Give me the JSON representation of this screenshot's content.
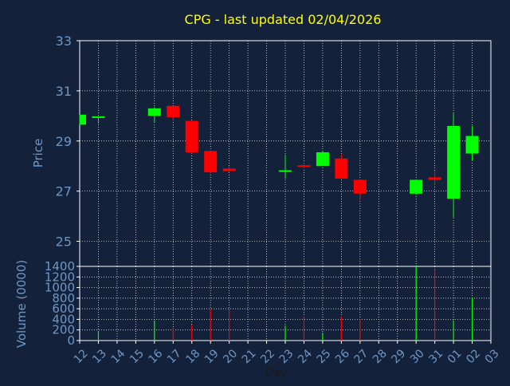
{
  "chart_data": {
    "type": "candlestick",
    "title": "CPG - last updated 02/04/2026",
    "xlabel": "Day",
    "price_panel": {
      "ylabel": "Price",
      "ylim": [
        24,
        33
      ],
      "yticks": [
        25,
        27,
        29,
        31,
        33
      ],
      "grid": true
    },
    "volume_panel": {
      "ylabel": "Volume (0000)",
      "ylim": [
        0,
        1400
      ],
      "yticks": [
        0,
        200,
        400,
        600,
        800,
        1000,
        1200,
        1400
      ],
      "grid": true
    },
    "x_tick_labels": [
      "12",
      "13",
      "14",
      "15",
      "16",
      "17",
      "18",
      "19",
      "20",
      "21",
      "22",
      "23",
      "24",
      "25",
      "26",
      "27",
      "28",
      "29",
      "30",
      "31",
      "01",
      "02",
      "03"
    ],
    "candles": [
      {
        "day": "12",
        "open": 29.65,
        "high": 30.05,
        "low": 29.65,
        "close": 30.05
      },
      {
        "day": "13",
        "open": 29.9,
        "high": 29.95,
        "low": 29.7,
        "close": 29.95
      },
      {
        "day": "16",
        "open": 30.0,
        "high": 30.35,
        "low": 29.75,
        "close": 30.3
      },
      {
        "day": "17",
        "open": 30.4,
        "high": 30.4,
        "low": 29.8,
        "close": 29.95
      },
      {
        "day": "18",
        "open": 29.8,
        "high": 29.8,
        "low": 28.5,
        "close": 28.55
      },
      {
        "day": "19",
        "open": 28.6,
        "high": 28.6,
        "low": 27.7,
        "close": 27.75
      },
      {
        "day": "20",
        "open": 27.9,
        "high": 28.0,
        "low": 27.75,
        "close": 27.8
      },
      {
        "day": "23",
        "open": 27.75,
        "high": 28.45,
        "low": 27.5,
        "close": 27.8
      },
      {
        "day": "24",
        "open": 28.0,
        "high": 28.15,
        "low": 27.9,
        "close": 27.95
      },
      {
        "day": "25",
        "open": 28.0,
        "high": 28.6,
        "low": 28.0,
        "close": 28.55
      },
      {
        "day": "26",
        "open": 28.3,
        "high": 28.45,
        "low": 27.5,
        "close": 27.5
      },
      {
        "day": "27",
        "open": 27.45,
        "high": 27.45,
        "low": 26.65,
        "close": 26.9
      },
      {
        "day": "30",
        "open": 26.9,
        "high": 27.45,
        "low": 26.85,
        "close": 27.45
      },
      {
        "day": "31",
        "open": 27.55,
        "high": 27.8,
        "low": 27.25,
        "close": 27.45
      },
      {
        "day": "01",
        "open": 26.7,
        "high": 30.1,
        "low": 25.95,
        "close": 29.6
      },
      {
        "day": "02",
        "open": 28.5,
        "high": 29.6,
        "low": 28.2,
        "close": 29.2
      }
    ],
    "volumes": [
      {
        "day": "12",
        "value": 0,
        "color": "#00ff00"
      },
      {
        "day": "13",
        "value": 180,
        "color": "#00ff00"
      },
      {
        "day": "16",
        "value": 380,
        "color": "#00ff00"
      },
      {
        "day": "17",
        "value": 240,
        "color": "#ff0000"
      },
      {
        "day": "18",
        "value": 300,
        "color": "#ff0000"
      },
      {
        "day": "19",
        "value": 600,
        "color": "#ff0000"
      },
      {
        "day": "20",
        "value": 600,
        "color": "#ff0000"
      },
      {
        "day": "23",
        "value": 280,
        "color": "#00ff00"
      },
      {
        "day": "24",
        "value": 450,
        "color": "#ff0000"
      },
      {
        "day": "25",
        "value": 150,
        "color": "#00ff00"
      },
      {
        "day": "26",
        "value": 450,
        "color": "#ff0000"
      },
      {
        "day": "27",
        "value": 400,
        "color": "#ff0000"
      },
      {
        "day": "30",
        "value": 1400,
        "color": "#00ff00"
      },
      {
        "day": "31",
        "value": 1350,
        "color": "#ff0000"
      },
      {
        "day": "01",
        "value": 380,
        "color": "#00ff00"
      },
      {
        "day": "02",
        "value": 800,
        "color": "#00ff00"
      }
    ],
    "colors": {
      "background": "#13213a",
      "title": "#ffff00",
      "axis_text": "#6f97c5",
      "grid": "#ffffff",
      "up": "#00ff00",
      "down": "#ff0000"
    }
  }
}
